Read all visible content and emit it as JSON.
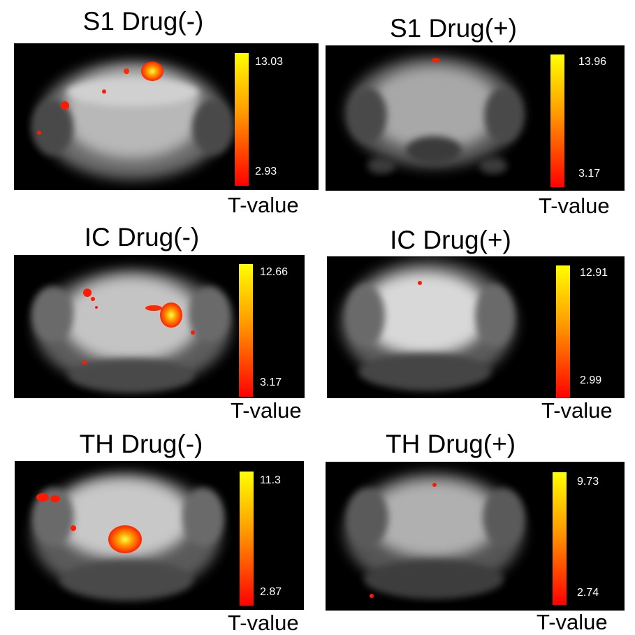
{
  "panels": [
    {
      "title": "S1 Drug(-)",
      "max": "13.03",
      "min": "2.93",
      "unit": "T-value"
    },
    {
      "title": "S1 Drug(+)",
      "max": "13.96",
      "min": "3.17",
      "unit": "T-value"
    },
    {
      "title": "IC Drug(-)",
      "max": "12.66",
      "min": "3.17",
      "unit": "T-value"
    },
    {
      "title": "IC Drug(+)",
      "max": "12.91",
      "min": "2.99",
      "unit": "T-value"
    },
    {
      "title": "TH Drug(-)",
      "max": "11.3",
      "min": "2.87",
      "unit": "T-value"
    },
    {
      "title": "TH Drug(+)",
      "max": "9.73",
      "min": "2.74",
      "unit": "T-value"
    }
  ],
  "colormap": {
    "low": "#ff0000",
    "mid": "#ff9900",
    "high": "#ffff00"
  }
}
